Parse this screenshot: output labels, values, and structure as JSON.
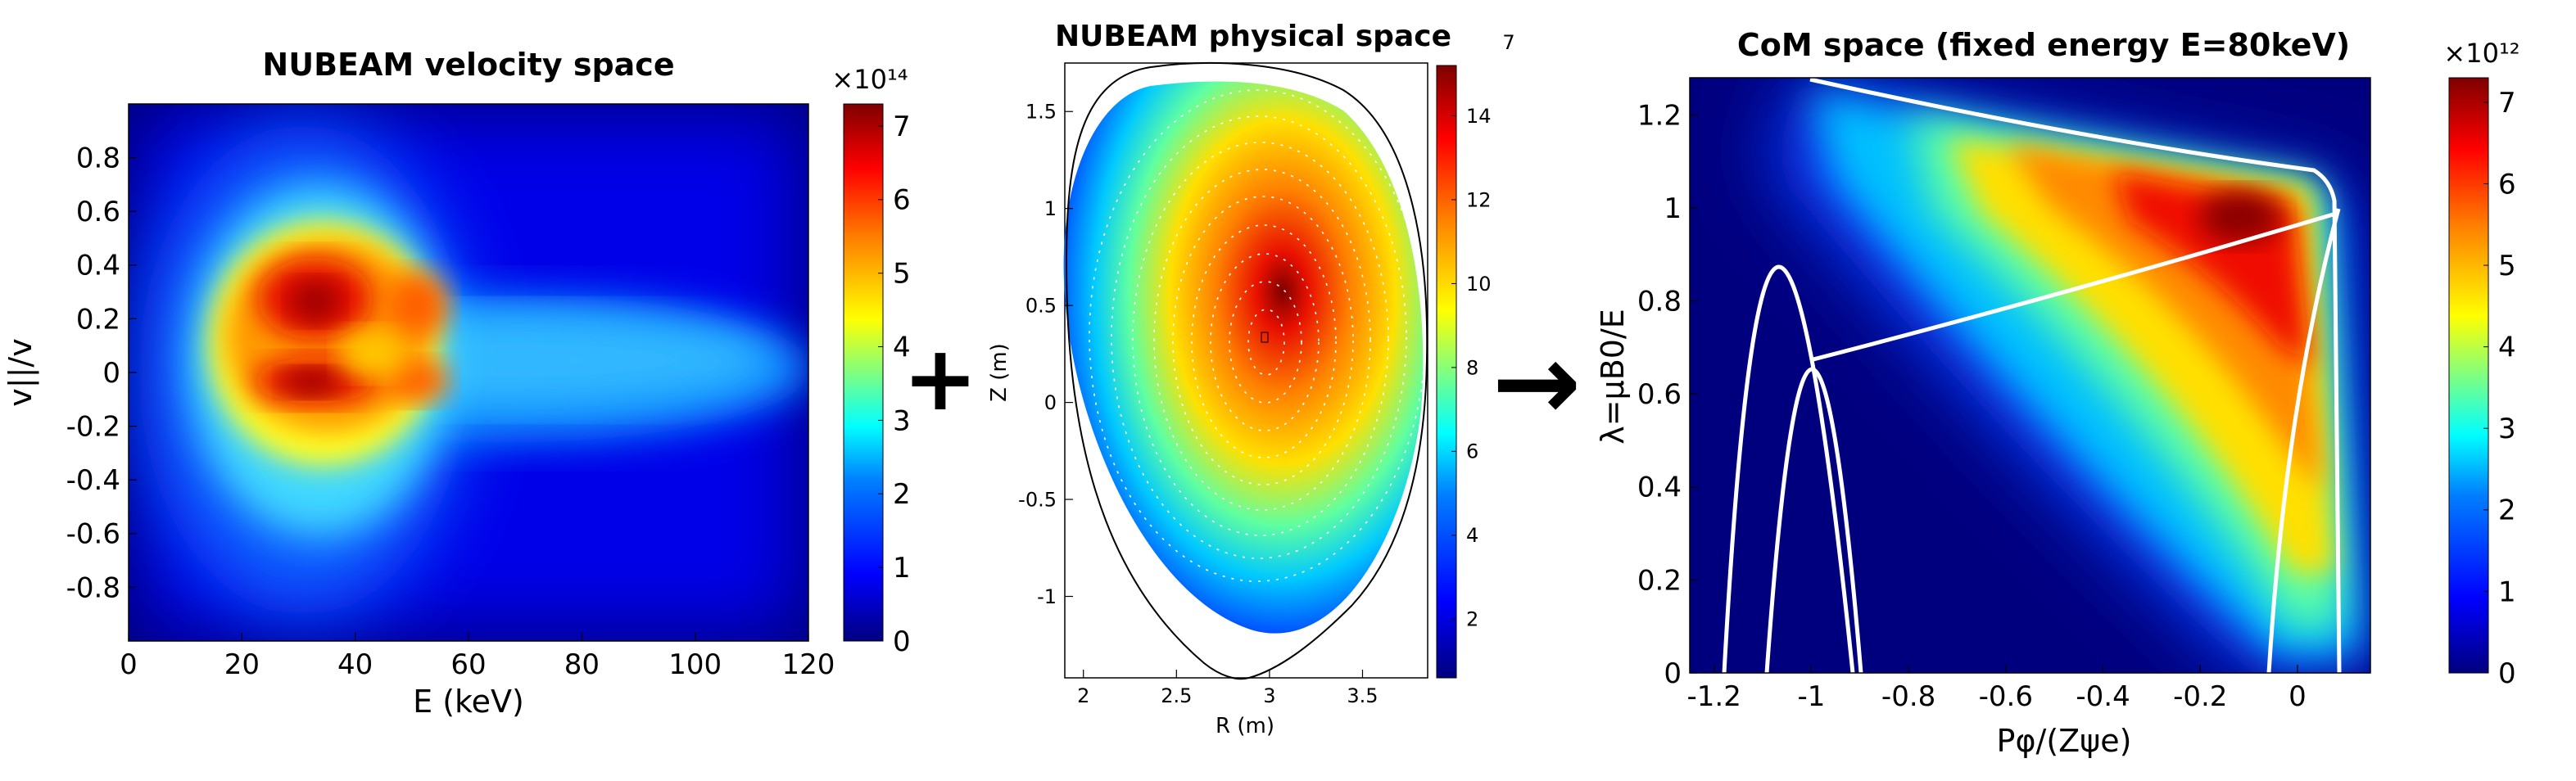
{
  "colormap": [
    "#00007f",
    "#0000ff",
    "#0080ff",
    "#00ffff",
    "#80ff80",
    "#ffff00",
    "#ff8000",
    "#ff0000",
    "#7f0000"
  ],
  "operators": {
    "plus": "+",
    "arrow": "→"
  },
  "chart_data": [
    {
      "type": "heatmap",
      "title": "NUBEAM velocity space",
      "xlabel": "E (keV)",
      "ylabel": "v||/v",
      "xlim": [
        0,
        120
      ],
      "ylim": [
        -1,
        1
      ],
      "xticks": [
        "0",
        "20",
        "40",
        "60",
        "80",
        "100",
        "120"
      ],
      "yticks": [
        "-0.8",
        "-0.6",
        "-0.4",
        "-0.2",
        "0",
        "0.2",
        "0.4",
        "0.6",
        "0.8"
      ],
      "colorbar": {
        "min": 0,
        "max": 7.3,
        "ticks": [
          "0",
          "1",
          "2",
          "3",
          "4",
          "5",
          "6",
          "7"
        ],
        "exponent": "×10¹⁴"
      },
      "features": [
        {
          "x": 33,
          "y": 0.25,
          "value": 7.1
        },
        {
          "x": 33,
          "y": -0.03,
          "value": 7.2
        },
        {
          "x": 50,
          "y": 0.22,
          "value": 6.0
        },
        {
          "x": 50,
          "y": -0.03,
          "value": 6.3
        },
        {
          "x": 25,
          "y": 0.1,
          "value": 6.0
        },
        {
          "x": 42,
          "y": 0.1,
          "value": 5.8
        },
        {
          "x": 80,
          "y": 0.1,
          "value": 2.6
        },
        {
          "x": 108,
          "y": 0.18,
          "value": 2.4
        },
        {
          "x": 35,
          "y": 0.55,
          "value": 2.3
        },
        {
          "x": 35,
          "y": -0.55,
          "value": 2.3
        }
      ]
    },
    {
      "type": "heatmap",
      "title": "NUBEAM physical space",
      "xlabel": "R (m)",
      "ylabel": "Z (m)",
      "xlim": [
        1.9,
        3.85
      ],
      "ylim": [
        -1.42,
        1.75
      ],
      "xticks": [
        "2",
        "2.5",
        "3",
        "3.5"
      ],
      "yticks": [
        "-1",
        "-0.5",
        "0",
        "0.5",
        "1",
        "1.5"
      ],
      "colorbar": {
        "min": 0.6,
        "max": 15.2,
        "ticks": [
          "2",
          "4",
          "6",
          "8",
          "10",
          "12",
          "14"
        ],
        "exponent": "7"
      },
      "peak": {
        "R": 3.0,
        "Z": 0.35,
        "value": 15
      }
    },
    {
      "type": "heatmap",
      "title": "CoM space (fixed energy E=80keV)",
      "xlabel": "Pφ/(Zψe)",
      "ylabel": "λ=μB0/E",
      "xlim": [
        -1.25,
        0.15
      ],
      "ylim": [
        0,
        1.28
      ],
      "xticks": [
        "-1.2",
        "-1",
        "-0.8",
        "-0.6",
        "-0.4",
        "-0.2",
        "0"
      ],
      "yticks": [
        "0",
        "0.2",
        "0.4",
        "0.6",
        "0.8",
        "1",
        "1.2"
      ],
      "colorbar": {
        "min": 0,
        "max": 7.3,
        "ticks": [
          "0",
          "1",
          "2",
          "3",
          "4",
          "5",
          "6",
          "7"
        ],
        "exponent": "×10¹²"
      },
      "peak": {
        "x": -0.1,
        "y": 0.95,
        "value": 7.2
      }
    }
  ]
}
